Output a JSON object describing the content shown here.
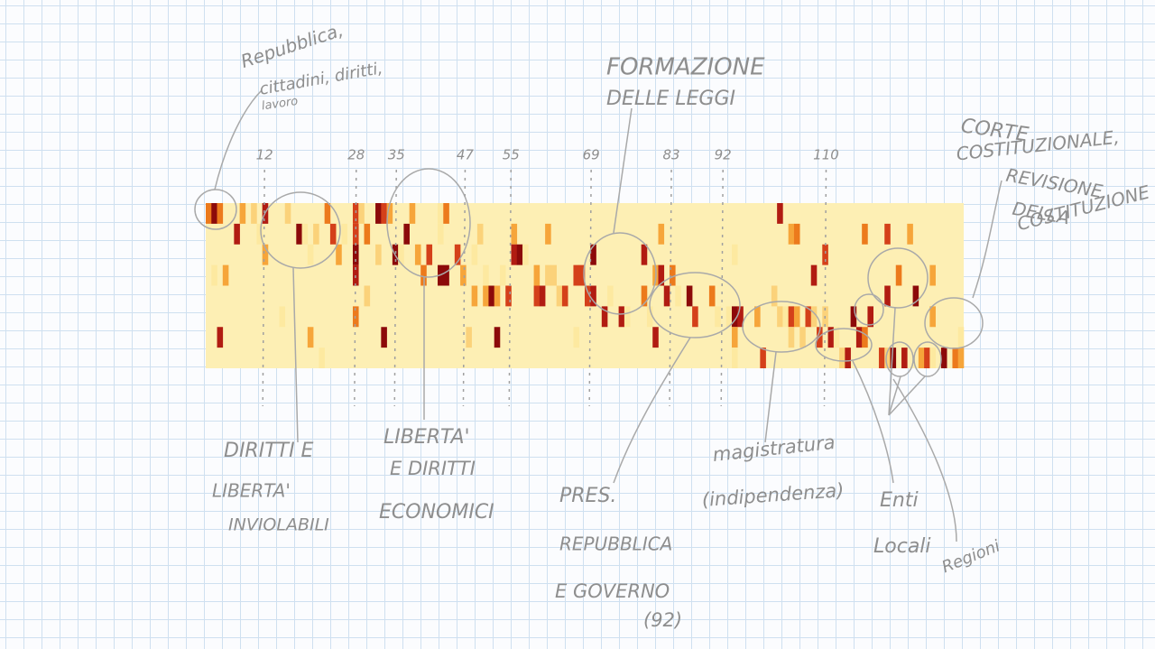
{
  "annotations": [
    {
      "lines": [
        "Repubblica,",
        "cittadini, diritti,",
        "lavoro"
      ]
    },
    {
      "lines": [
        "FORMAZIONE",
        "DELLE LEGGI"
      ]
    },
    {
      "lines": [
        "CORTE",
        "COSTITUZIONALE,",
        "REVISIONE",
        "DELLA",
        "COSTITUZIONE"
      ]
    },
    {
      "lines": [
        "DIRITTI E",
        "LIBERTA'",
        "INVIOLABILI"
      ]
    },
    {
      "lines": [
        "LIBERTA'",
        "E DIRITTI",
        "ECONOMICI"
      ]
    },
    {
      "lines": [
        "PRES.",
        "REPUBBLICA",
        "E GOVERNO",
        "(92)"
      ]
    },
    {
      "lines": [
        "magistratura",
        "(indipendenza)"
      ]
    },
    {
      "lines": [
        "Enti",
        "Locali"
      ]
    },
    {
      "lines": [
        "Regioni"
      ]
    }
  ],
  "ticks": [
    12,
    28,
    35,
    47,
    55,
    69,
    83,
    92,
    110
  ]
}
